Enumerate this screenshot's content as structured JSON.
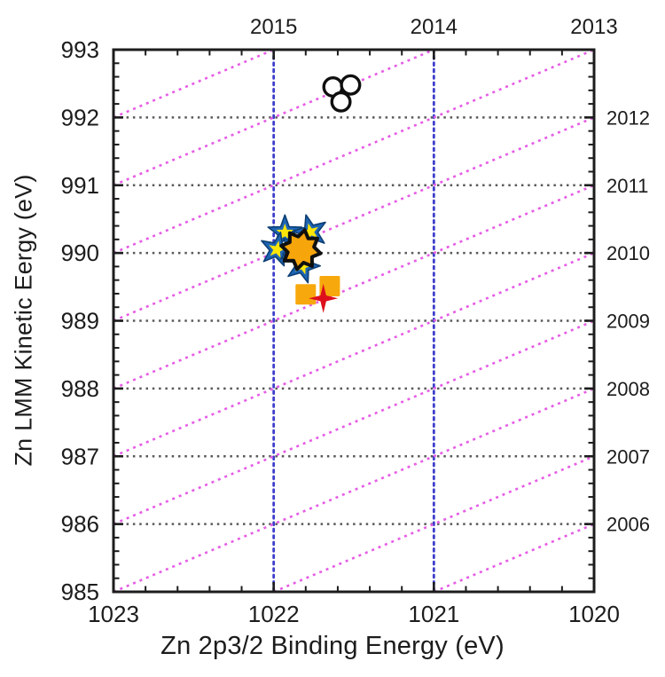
{
  "figure": {
    "background": "#ffffff",
    "frame_color": "#1c1c1c",
    "text_color": "#1c1c1c"
  },
  "chart_data": {
    "type": "scatter",
    "title": "",
    "xlabel": "Zn 2p3/2 Binding Energy (eV)",
    "ylabel": "Zn LMM Kinetic Eergy (eV)",
    "xlim": [
      1023,
      1020
    ],
    "ylim": [
      985,
      993
    ],
    "x_axis_reversed": true,
    "x_tick_values": [
      1023,
      1022,
      1021,
      1020
    ],
    "x_tick_labels": [
      "1023",
      "1022",
      "1021",
      "1020"
    ],
    "y_tick_values": [
      993,
      992,
      991,
      990,
      989,
      988,
      987,
      986,
      985
    ],
    "y_tick_labels": [
      "993",
      "992",
      "991",
      "990",
      "989",
      "988",
      "987",
      "986",
      "985"
    ],
    "minor_tick_step": 0.2,
    "grid": {
      "horizontal_values": [
        986,
        987,
        988,
        989,
        990,
        991,
        992
      ],
      "horizontal_color": "#595959",
      "vertical_values": [
        1022,
        1021
      ],
      "vertical_color": "#3e3ecb"
    },
    "auger_parameter_lines": {
      "relation": "KE = alpha - BE",
      "alphas": [
        2006,
        2007,
        2008,
        2009,
        2010,
        2011,
        2012,
        2013,
        2014,
        2015
      ],
      "color": "#e65ce6"
    },
    "top_axis_labels": [
      {
        "text": "2015",
        "at_be": 1022
      },
      {
        "text": "2014",
        "at_be": 1021
      },
      {
        "text": "2013",
        "at_be": 1020
      }
    ],
    "right_axis_labels": [
      {
        "text": "2012",
        "at_ke": 992
      },
      {
        "text": "2011",
        "at_ke": 991
      },
      {
        "text": "2010",
        "at_ke": 990
      },
      {
        "text": "2009",
        "at_ke": 989
      },
      {
        "text": "2008",
        "at_ke": 988
      },
      {
        "text": "2007",
        "at_ke": 987
      },
      {
        "text": "2006",
        "at_ke": 986
      }
    ],
    "series": [
      {
        "name": "blue-star-markers",
        "marker": "five-point-star-with-inner-star",
        "fill": "#1d65b5",
        "stroke": "#0d3f74",
        "inner_fill": "#ffe608",
        "points": [
          [
            1021.93,
            990.3
          ],
          [
            1021.77,
            990.31
          ],
          [
            1021.98,
            990.05
          ],
          [
            1021.86,
            990.04
          ],
          [
            1021.82,
            989.81
          ]
        ],
        "rotations": [
          0,
          -15,
          12,
          25,
          162
        ]
      },
      {
        "name": "orange-burst-marker",
        "marker": "eight-point-star",
        "fill": "#f6a50b",
        "stroke": "#101010",
        "points": [
          [
            1021.83,
            990.05
          ]
        ],
        "rotations": [
          11
        ]
      },
      {
        "name": "orange-square-markers",
        "marker": "square",
        "fill": "#f7a80c",
        "points": [
          [
            1021.65,
            989.51
          ],
          [
            1021.8,
            989.39
          ]
        ]
      },
      {
        "name": "red-four-point-star-marker",
        "marker": "four-point-star",
        "fill": "#de0f1c",
        "points": [
          [
            1021.69,
            989.33
          ]
        ]
      },
      {
        "name": "open-circle-markers",
        "marker": "open-circle",
        "fill": "#ffffff",
        "stroke": "#0f0f0f",
        "points": [
          [
            1021.63,
            992.45
          ],
          [
            1021.52,
            992.48
          ],
          [
            1021.58,
            992.23
          ]
        ]
      }
    ]
  }
}
